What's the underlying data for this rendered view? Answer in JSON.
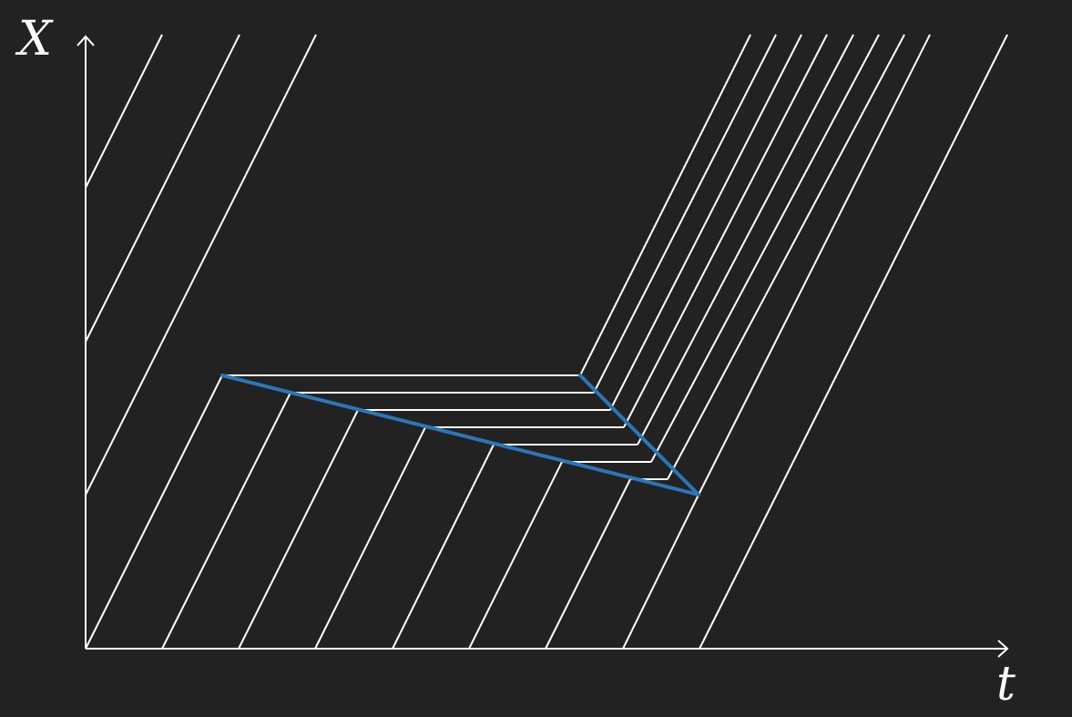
{
  "diagram": {
    "x_axis_label": "t",
    "y_axis_label": "X",
    "colors": {
      "background": "#222222",
      "lines": "#ffffff",
      "highlight": "#2e75b6"
    }
  }
}
